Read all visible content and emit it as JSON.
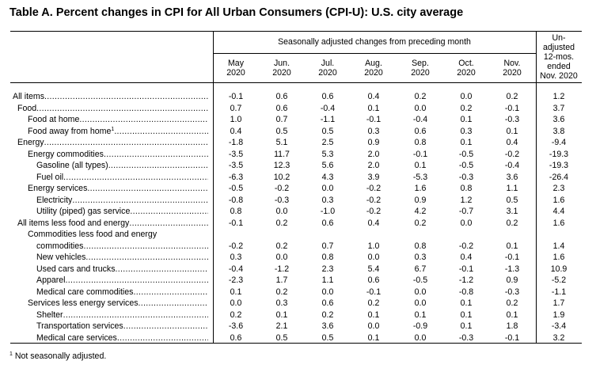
{
  "title": "Table A. Percent changes in CPI for All Urban Consumers (CPI-U): U.S. city average",
  "header": {
    "group": "Seasonally adjusted changes from preceding month",
    "months": [
      {
        "mon": "May",
        "yr": "2020"
      },
      {
        "mon": "Jun.",
        "yr": "2020"
      },
      {
        "mon": "Jul.",
        "yr": "2020"
      },
      {
        "mon": "Aug.",
        "yr": "2020"
      },
      {
        "mon": "Sep.",
        "yr": "2020"
      },
      {
        "mon": "Oct.",
        "yr": "2020"
      },
      {
        "mon": "Nov.",
        "yr": "2020"
      }
    ],
    "unadj": [
      "Un-",
      "adjusted",
      "12-mos.",
      "ended",
      "Nov. 2020"
    ]
  },
  "rows": [
    {
      "label": "All items",
      "indent": 0,
      "values": [
        "-0.1",
        "0.6",
        "0.6",
        "0.4",
        "0.2",
        "0.0",
        "0.2",
        "1.2"
      ]
    },
    {
      "label": "Food",
      "indent": 1,
      "values": [
        "0.7",
        "0.6",
        "-0.4",
        "0.1",
        "0.0",
        "0.2",
        "-0.1",
        "3.7"
      ]
    },
    {
      "label": "Food at home",
      "indent": 2,
      "values": [
        "1.0",
        "0.7",
        "-1.1",
        "-0.1",
        "-0.4",
        "0.1",
        "-0.3",
        "3.6"
      ]
    },
    {
      "label": "Food away from home",
      "sup": "1",
      "indent": 2,
      "values": [
        "0.4",
        "0.5",
        "0.5",
        "0.3",
        "0.6",
        "0.3",
        "0.1",
        "3.8"
      ]
    },
    {
      "label": "Energy",
      "indent": 1,
      "values": [
        "-1.8",
        "5.1",
        "2.5",
        "0.9",
        "0.8",
        "0.1",
        "0.4",
        "-9.4"
      ]
    },
    {
      "label": "Energy commodities",
      "indent": 2,
      "values": [
        "-3.5",
        "11.7",
        "5.3",
        "2.0",
        "-0.1",
        "-0.5",
        "-0.2",
        "-19.3"
      ]
    },
    {
      "label": "Gasoline (all types)",
      "indent": 3,
      "values": [
        "-3.5",
        "12.3",
        "5.6",
        "2.0",
        "0.1",
        "-0.5",
        "-0.4",
        "-19.3"
      ]
    },
    {
      "label": "Fuel oil",
      "indent": 3,
      "values": [
        "-6.3",
        "10.2",
        "4.3",
        "3.9",
        "-5.3",
        "-0.3",
        "3.6",
        "-26.4"
      ]
    },
    {
      "label": "Energy services",
      "indent": 2,
      "values": [
        "-0.5",
        "-0.2",
        "0.0",
        "-0.2",
        "1.6",
        "0.8",
        "1.1",
        "2.3"
      ]
    },
    {
      "label": "Electricity",
      "indent": 3,
      "values": [
        "-0.8",
        "-0.3",
        "0.3",
        "-0.2",
        "0.9",
        "1.2",
        "0.5",
        "1.6"
      ]
    },
    {
      "label": "Utility (piped) gas service",
      "indent": 3,
      "values": [
        "0.8",
        "0.0",
        "-1.0",
        "-0.2",
        "4.2",
        "-0.7",
        "3.1",
        "4.4"
      ]
    },
    {
      "label": "All items less food and energy",
      "indent": 1,
      "values": [
        "-0.1",
        "0.2",
        "0.6",
        "0.4",
        "0.2",
        "0.0",
        "0.2",
        "1.6"
      ]
    },
    {
      "label": "commodities",
      "line1": "Commodities less food and energy",
      "indent": 2,
      "values": [
        "-0.2",
        "0.2",
        "0.7",
        "1.0",
        "0.8",
        "-0.2",
        "0.1",
        "1.4"
      ]
    },
    {
      "label": "New vehicles",
      "indent": 3,
      "values": [
        "0.3",
        "0.0",
        "0.8",
        "0.0",
        "0.3",
        "0.4",
        "-0.1",
        "1.6"
      ]
    },
    {
      "label": "Used cars and trucks",
      "indent": 3,
      "values": [
        "-0.4",
        "-1.2",
        "2.3",
        "5.4",
        "6.7",
        "-0.1",
        "-1.3",
        "10.9"
      ]
    },
    {
      "label": "Apparel",
      "indent": 3,
      "values": [
        "-2.3",
        "1.7",
        "1.1",
        "0.6",
        "-0.5",
        "-1.2",
        "0.9",
        "-5.2"
      ]
    },
    {
      "label": "Medical care commodities",
      "indent": 3,
      "values": [
        "0.1",
        "0.2",
        "0.0",
        "-0.1",
        "0.0",
        "-0.8",
        "-0.3",
        "-1.1"
      ]
    },
    {
      "label": "Services less energy services",
      "indent": 2,
      "values": [
        "0.0",
        "0.3",
        "0.6",
        "0.2",
        "0.0",
        "0.1",
        "0.2",
        "1.7"
      ]
    },
    {
      "label": "Shelter",
      "indent": 3,
      "values": [
        "0.2",
        "0.1",
        "0.2",
        "0.1",
        "0.1",
        "0.1",
        "0.1",
        "1.9"
      ]
    },
    {
      "label": "Transportation services",
      "indent": 3,
      "values": [
        "-3.6",
        "2.1",
        "3.6",
        "0.0",
        "-0.9",
        "0.1",
        "1.8",
        "-3.4"
      ]
    },
    {
      "label": "Medical care services",
      "indent": 3,
      "values": [
        "0.6",
        "0.5",
        "0.5",
        "0.1",
        "0.0",
        "-0.3",
        "-0.1",
        "3.2"
      ]
    }
  ],
  "footnote": {
    "mark": "1",
    "text": "Not seasonally adjusted."
  }
}
